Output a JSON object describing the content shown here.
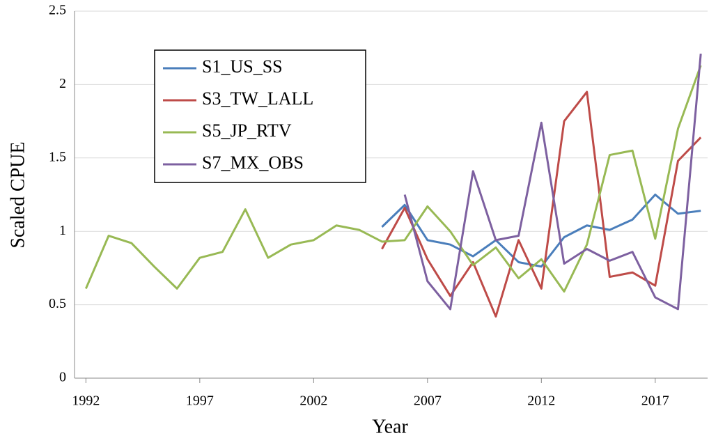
{
  "chart_data": {
    "type": "line",
    "x_label": "Year",
    "y_label": "Scaled CPUE",
    "x": [
      1992,
      1993,
      1994,
      1995,
      1996,
      1997,
      1998,
      1999,
      2000,
      2001,
      2002,
      2003,
      2004,
      2005,
      2006,
      2007,
      2008,
      2009,
      2010,
      2011,
      2012,
      2013,
      2014,
      2015,
      2016,
      2017,
      2018,
      2019
    ],
    "series": [
      {
        "name": "S1_US_SS",
        "color": "#4a7ebb",
        "values": [
          null,
          null,
          null,
          null,
          null,
          null,
          null,
          null,
          null,
          null,
          null,
          null,
          null,
          1.03,
          1.18,
          0.94,
          0.91,
          0.83,
          0.94,
          0.79,
          0.76,
          0.96,
          1.04,
          1.01,
          1.08,
          1.25,
          1.12,
          1.14
        ]
      },
      {
        "name": "S3_TW_LALL",
        "color": "#be4b48",
        "values": [
          null,
          null,
          null,
          null,
          null,
          null,
          null,
          null,
          null,
          null,
          null,
          null,
          null,
          0.88,
          1.16,
          0.81,
          0.56,
          0.79,
          0.42,
          0.94,
          0.61,
          1.75,
          1.95,
          0.69,
          0.72,
          0.63,
          1.48,
          1.64
        ]
      },
      {
        "name": "S5_JP_RTV",
        "color": "#98b954",
        "values": [
          0.61,
          0.97,
          0.92,
          0.76,
          0.61,
          0.82,
          0.86,
          1.15,
          0.82,
          0.91,
          0.94,
          1.04,
          1.01,
          0.93,
          0.94,
          1.17,
          1.0,
          0.77,
          0.89,
          0.68,
          0.81,
          0.59,
          0.91,
          1.52,
          1.55,
          0.95,
          1.7,
          2.13
        ]
      },
      {
        "name": "S7_MX_OBS",
        "color": "#7d60a0",
        "values": [
          null,
          null,
          null,
          null,
          null,
          null,
          null,
          null,
          null,
          null,
          null,
          null,
          null,
          null,
          1.25,
          0.66,
          0.47,
          1.41,
          0.94,
          0.97,
          1.74,
          0.78,
          0.88,
          0.8,
          0.86,
          0.55,
          0.47,
          2.21
        ]
      }
    ],
    "xlim": [
      1991.5,
      2019.3
    ],
    "xticks": [
      1992,
      1997,
      2002,
      2007,
      2012,
      2017
    ],
    "ylim": [
      0,
      2.5
    ],
    "yticks": [
      0,
      0.5,
      1,
      1.5,
      2,
      2.5
    ],
    "grid": true,
    "legend": "upper left"
  }
}
